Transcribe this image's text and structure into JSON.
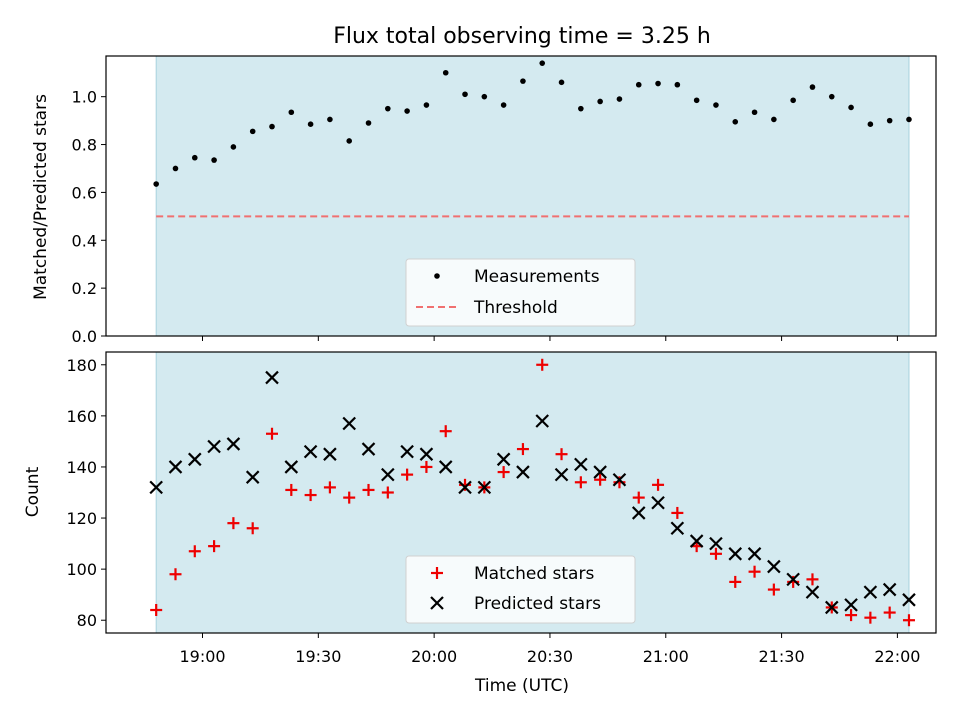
{
  "chart_data": [
    {
      "type": "scatter",
      "title": "Flux total observing time = 3.25 h",
      "xlabel": "",
      "ylabel": "Matched/Predicted stars",
      "ylim": [
        0,
        1.17
      ],
      "yticks": [
        "0.0",
        "0.2",
        "0.4",
        "0.6",
        "0.8",
        "1.0"
      ],
      "ytick_values": [
        0,
        0.2,
        0.4,
        0.6,
        0.8,
        1.0
      ],
      "shaded_region": {
        "start": "18:48",
        "end": "22:03",
        "color": "#d4eaf0"
      },
      "threshold": {
        "name": "Threshold",
        "value": 0.5,
        "color": "#f07070",
        "style": "dashed"
      },
      "series": [
        {
          "name": "Measurements",
          "color": "#000000",
          "marker": "dot",
          "x": [
            "18:48",
            "18:53",
            "18:58",
            "19:03",
            "19:08",
            "19:13",
            "19:18",
            "19:23",
            "19:28",
            "19:33",
            "19:38",
            "19:43",
            "19:48",
            "19:53",
            "19:58",
            "20:03",
            "20:08",
            "20:13",
            "20:18",
            "20:23",
            "20:28",
            "20:33",
            "20:38",
            "20:43",
            "20:48",
            "20:53",
            "20:58",
            "21:03",
            "21:08",
            "21:13",
            "21:18",
            "21:23",
            "21:28",
            "21:33",
            "21:38",
            "21:43",
            "21:48",
            "21:53",
            "21:58",
            "22:03"
          ],
          "values": [
            0.635,
            0.7,
            0.745,
            0.735,
            0.79,
            0.855,
            0.875,
            0.935,
            0.885,
            0.905,
            0.815,
            0.89,
            0.95,
            0.94,
            0.965,
            1.1,
            1.01,
            1.0,
            0.965,
            1.065,
            1.14,
            1.06,
            0.95,
            0.98,
            0.99,
            1.05,
            1.055,
            1.05,
            0.985,
            0.965,
            0.895,
            0.935,
            0.905,
            0.985,
            1.04,
            1.0,
            0.955,
            0.885,
            0.9,
            0.905
          ]
        }
      ],
      "legend": {
        "position": "lower center",
        "entries": [
          "Measurements",
          "Threshold"
        ]
      }
    },
    {
      "type": "scatter",
      "title": "",
      "xlabel": "Time (UTC)",
      "ylabel": "Count",
      "ylim": [
        75,
        185
      ],
      "xlim": [
        "18:35",
        "22:10"
      ],
      "xticks": [
        "19:00",
        "19:30",
        "20:00",
        "20:30",
        "21:00",
        "21:30",
        "22:00"
      ],
      "yticks": [
        "80",
        "100",
        "120",
        "140",
        "160",
        "180"
      ],
      "ytick_values": [
        80,
        100,
        120,
        140,
        160,
        180
      ],
      "shaded_region": {
        "start": "18:48",
        "end": "22:03",
        "color": "#d4eaf0"
      },
      "series": [
        {
          "name": "Matched stars",
          "color": "#ee0000",
          "marker": "plus",
          "x": [
            "18:48",
            "18:53",
            "18:58",
            "19:03",
            "19:08",
            "19:13",
            "19:18",
            "19:23",
            "19:28",
            "19:33",
            "19:38",
            "19:43",
            "19:48",
            "19:53",
            "19:58",
            "20:03",
            "20:08",
            "20:13",
            "20:18",
            "20:23",
            "20:28",
            "20:33",
            "20:38",
            "20:43",
            "20:48",
            "20:53",
            "20:58",
            "21:03",
            "21:08",
            "21:13",
            "21:18",
            "21:23",
            "21:28",
            "21:33",
            "21:38",
            "21:43",
            "21:48",
            "21:53",
            "21:58",
            "22:03"
          ],
          "values": [
            84,
            98,
            107,
            109,
            118,
            116,
            153,
            131,
            129,
            132,
            128,
            131,
            130,
            137,
            140,
            154,
            133,
            132,
            138,
            147,
            180,
            145,
            134,
            135,
            134,
            128,
            133,
            122,
            109,
            106,
            95,
            99,
            92,
            95,
            96,
            85,
            82,
            81,
            83,
            80
          ]
        },
        {
          "name": "Predicted stars",
          "color": "#000000",
          "marker": "x",
          "x": [
            "18:48",
            "18:53",
            "18:58",
            "19:03",
            "19:08",
            "19:13",
            "19:18",
            "19:23",
            "19:28",
            "19:33",
            "19:38",
            "19:43",
            "19:48",
            "19:53",
            "19:58",
            "20:03",
            "20:08",
            "20:13",
            "20:18",
            "20:23",
            "20:28",
            "20:33",
            "20:38",
            "20:43",
            "20:48",
            "20:53",
            "20:58",
            "21:03",
            "21:08",
            "21:13",
            "21:18",
            "21:23",
            "21:28",
            "21:33",
            "21:38",
            "21:43",
            "21:48",
            "21:53",
            "21:58",
            "22:03"
          ],
          "values": [
            132,
            140,
            143,
            148,
            149,
            136,
            175,
            140,
            146,
            145,
            157,
            147,
            137,
            146,
            145,
            140,
            132,
            132,
            143,
            138,
            158,
            137,
            141,
            138,
            135,
            122,
            126,
            116,
            111,
            110,
            106,
            106,
            101,
            96,
            91,
            85,
            86,
            91,
            92,
            88
          ]
        }
      ],
      "legend": {
        "position": "lower center",
        "entries": [
          "Matched stars",
          "Predicted stars"
        ]
      }
    }
  ]
}
